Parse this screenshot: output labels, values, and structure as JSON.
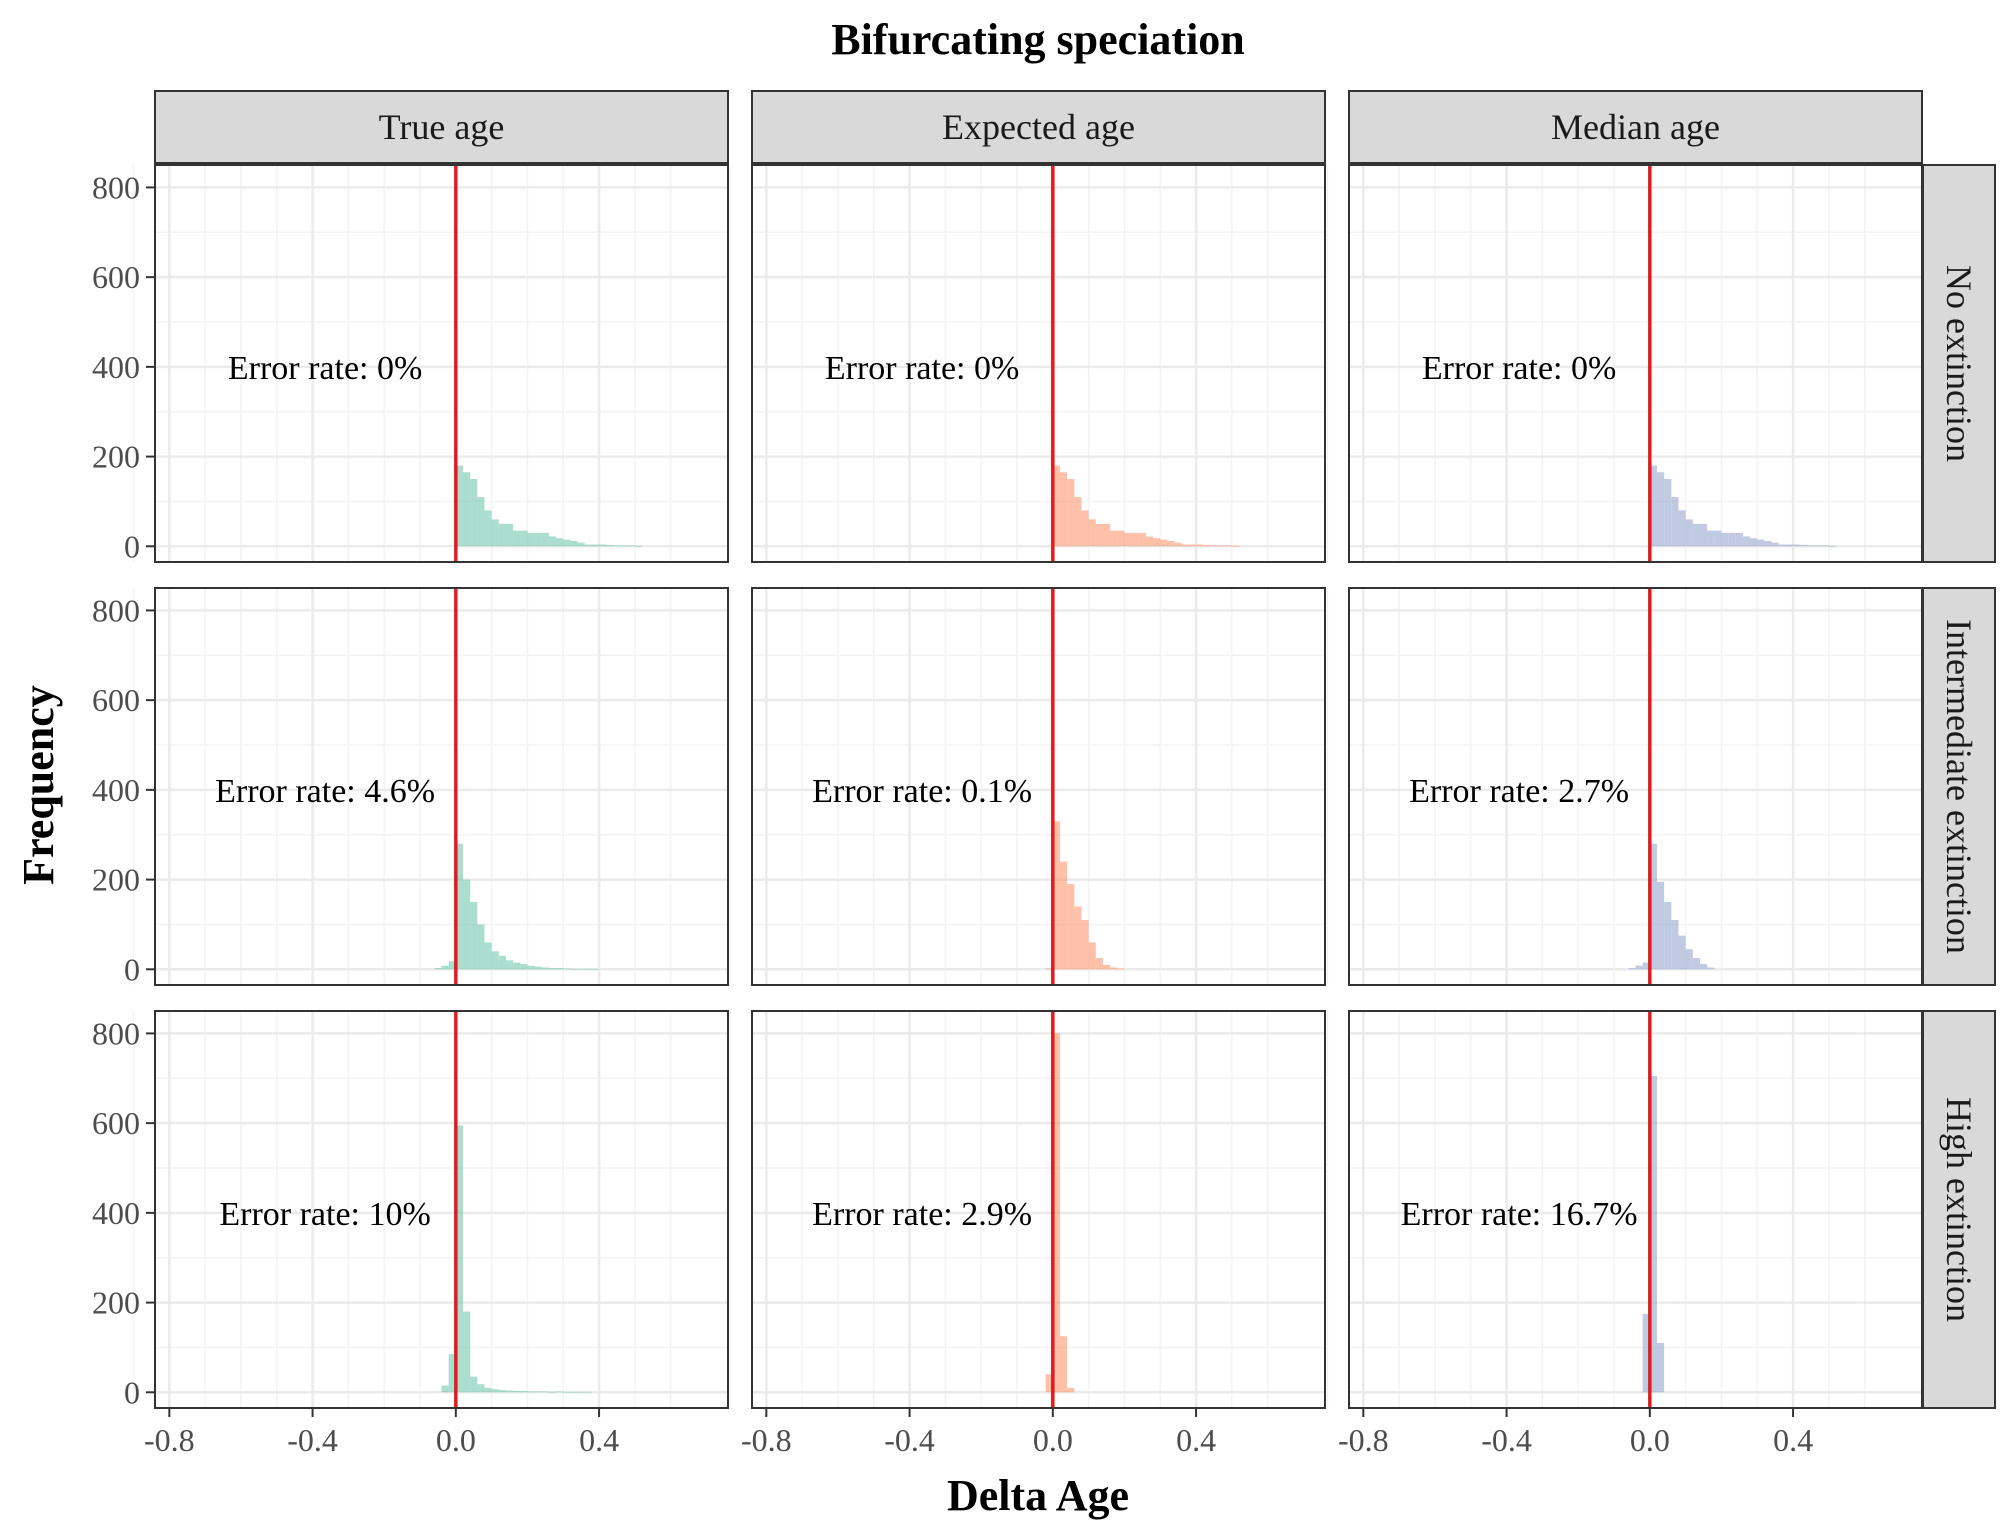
{
  "chart_data": {
    "type": "histogram-facet-grid",
    "title": "Bifurcating speciation",
    "xlabel": "Delta Age",
    "ylabel": "Frequency",
    "xlim": [
      -0.84,
      0.76
    ],
    "ylim": [
      -35,
      850
    ],
    "x_ticks": [
      -0.8,
      -0.4,
      0.0,
      0.4
    ],
    "x_tick_labels": [
      "-0.8",
      "-0.4",
      "0.0",
      "0.4"
    ],
    "y_ticks": [
      0,
      200,
      400,
      600,
      800
    ],
    "y_tick_labels": [
      "0",
      "200",
      "400",
      "600",
      "800"
    ],
    "bin_width": 0.02,
    "reference_line": {
      "x": 0.0,
      "color": "#e41a1c"
    },
    "column_labels": [
      "True age",
      "Expected age",
      "Median age"
    ],
    "row_labels": [
      "No extinction",
      "Intermediate extinction",
      "High extinction"
    ],
    "colors": {
      "True age": "#66c2a5",
      "Expected age": "#fc8d62",
      "Median age": "#8da0cb"
    },
    "strip_fill": "#d9d9d9",
    "panels": [
      {
        "row": 0,
        "col": 0,
        "annotation": "Error rate: 0%",
        "bin_starts": [
          0.0,
          0.02,
          0.04,
          0.06,
          0.08,
          0.1,
          0.12,
          0.14,
          0.16,
          0.18,
          0.2,
          0.22,
          0.24,
          0.26,
          0.28,
          0.3,
          0.32,
          0.34,
          0.36,
          0.38,
          0.4,
          0.42,
          0.44,
          0.46,
          0.48,
          0.5
        ],
        "counts": [
          180,
          165,
          150,
          110,
          80,
          60,
          50,
          50,
          35,
          35,
          30,
          30,
          30,
          22,
          18,
          15,
          12,
          8,
          4,
          4,
          4,
          3,
          2,
          2,
          2,
          1
        ]
      },
      {
        "row": 0,
        "col": 1,
        "annotation": "Error rate: 0%",
        "bin_starts": [
          0.0,
          0.02,
          0.04,
          0.06,
          0.08,
          0.1,
          0.12,
          0.14,
          0.16,
          0.18,
          0.2,
          0.22,
          0.24,
          0.26,
          0.28,
          0.3,
          0.32,
          0.34,
          0.36,
          0.38,
          0.4,
          0.42,
          0.44,
          0.46,
          0.48,
          0.5
        ],
        "counts": [
          180,
          165,
          150,
          110,
          80,
          60,
          50,
          50,
          35,
          35,
          30,
          30,
          30,
          22,
          18,
          15,
          12,
          8,
          4,
          4,
          4,
          3,
          2,
          2,
          2,
          1
        ]
      },
      {
        "row": 0,
        "col": 2,
        "annotation": "Error rate: 0%",
        "bin_starts": [
          0.0,
          0.02,
          0.04,
          0.06,
          0.08,
          0.1,
          0.12,
          0.14,
          0.16,
          0.18,
          0.2,
          0.22,
          0.24,
          0.26,
          0.28,
          0.3,
          0.32,
          0.34,
          0.36,
          0.38,
          0.4,
          0.42,
          0.44,
          0.46,
          0.48,
          0.5
        ],
        "counts": [
          180,
          165,
          150,
          110,
          80,
          60,
          50,
          50,
          35,
          35,
          30,
          30,
          30,
          22,
          18,
          15,
          12,
          8,
          4,
          4,
          4,
          3,
          2,
          2,
          2,
          1
        ]
      },
      {
        "row": 1,
        "col": 0,
        "annotation": "Error rate: 4.6%",
        "bin_starts": [
          -0.06,
          -0.04,
          -0.02,
          0.0,
          0.02,
          0.04,
          0.06,
          0.08,
          0.1,
          0.12,
          0.14,
          0.16,
          0.18,
          0.2,
          0.22,
          0.24,
          0.26,
          0.28,
          0.3,
          0.32,
          0.34,
          0.36,
          0.38
        ],
        "counts": [
          3,
          8,
          18,
          280,
          200,
          150,
          100,
          60,
          40,
          30,
          20,
          15,
          12,
          8,
          6,
          4,
          3,
          3,
          2,
          1,
          1,
          1,
          1
        ]
      },
      {
        "row": 1,
        "col": 1,
        "annotation": "Error rate: 0.1%",
        "bin_starts": [
          -0.02,
          0.0,
          0.02,
          0.04,
          0.06,
          0.08,
          0.1,
          0.12,
          0.14,
          0.16,
          0.18
        ],
        "counts": [
          2,
          330,
          240,
          190,
          140,
          110,
          60,
          25,
          10,
          4,
          2
        ]
      },
      {
        "row": 1,
        "col": 2,
        "annotation": "Error rate: 2.7%",
        "bin_starts": [
          -0.06,
          -0.04,
          -0.02,
          0.0,
          0.02,
          0.04,
          0.06,
          0.08,
          0.1,
          0.12,
          0.14,
          0.16
        ],
        "counts": [
          3,
          8,
          15,
          280,
          195,
          150,
          110,
          75,
          45,
          25,
          12,
          4
        ]
      },
      {
        "row": 2,
        "col": 0,
        "annotation": "Error rate: 10%",
        "bin_starts": [
          -0.04,
          -0.02,
          0.0,
          0.02,
          0.04,
          0.06,
          0.08,
          0.1,
          0.12,
          0.14,
          0.16,
          0.18,
          0.2,
          0.22,
          0.24,
          0.26,
          0.28,
          0.3,
          0.32,
          0.34,
          0.36
        ],
        "counts": [
          15,
          85,
          595,
          180,
          35,
          18,
          10,
          7,
          5,
          4,
          3,
          3,
          2,
          2,
          2,
          1,
          2,
          1,
          1,
          1,
          1
        ]
      },
      {
        "row": 2,
        "col": 1,
        "annotation": "Error rate: 2.9%",
        "bin_starts": [
          -0.02,
          0.0,
          0.02,
          0.04
        ],
        "counts": [
          40,
          800,
          125,
          10
        ]
      },
      {
        "row": 2,
        "col": 2,
        "annotation": "Error rate: 16.7%",
        "bin_starts": [
          -0.02,
          0.0,
          0.02
        ],
        "counts": [
          175,
          705,
          110
        ]
      }
    ]
  }
}
